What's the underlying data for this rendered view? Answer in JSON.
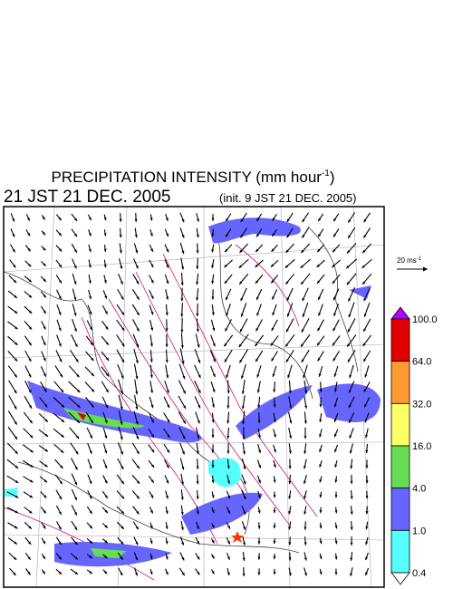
{
  "title": {
    "text": "PRECIPITATION INTENSITY (mm hour",
    "superscript": "-1",
    "close": ")"
  },
  "valid_time": "21 JST 21 DEC. 2005",
  "init_time": "(init. 9 JST 21 DEC. 2005)",
  "reference_vector": {
    "text": "20 ms",
    "superscript": "-1"
  },
  "colorbar": {
    "labels": [
      "100.0",
      "64.0",
      "32.0",
      "16.0",
      "4.0",
      "1.0",
      "0.4"
    ],
    "colors": [
      "#e00000",
      "#ff9a33",
      "#ffff66",
      "#66dd55",
      "#6666ff",
      "#55ffff"
    ],
    "over_color": "#b400ff",
    "under_color": "#ffffff"
  }
}
